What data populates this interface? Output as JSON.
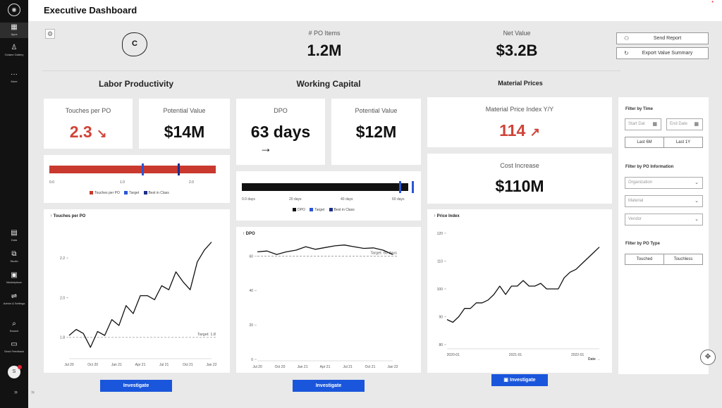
{
  "sidebar": {
    "items": [
      {
        "label": "Apps",
        "icon": "grid-icon"
      },
      {
        "label": "Octane Gallery",
        "icon": "gallery-icon"
      },
      {
        "label": "More",
        "icon": "more-icon"
      },
      {
        "label": "Data",
        "icon": "data-icon"
      },
      {
        "label": "Studio",
        "icon": "studio-icon"
      },
      {
        "label": "Marketplace",
        "icon": "marketplace-icon"
      },
      {
        "label": "Admin & Settings",
        "icon": "settings-icon"
      },
      {
        "label": "Search",
        "icon": "search-icon"
      },
      {
        "label": "Send Feedback",
        "icon": "feedback-icon"
      }
    ],
    "avatar_letter": "S"
  },
  "header": {
    "title": "Executive Dashboard"
  },
  "brand": {
    "logo_letter": "C"
  },
  "kpis": {
    "po_items_label": "# PO Items",
    "po_items_value": "1.2M",
    "net_value_label": "Net Value",
    "net_value_value": "$3.2B"
  },
  "actions": {
    "send_report": "Send Report",
    "export": "Export Value Summary"
  },
  "sections": {
    "labor": "Labor Productivity",
    "working": "Working Capital",
    "material": "Material Prices"
  },
  "labor": {
    "touches_label": "Touches per PO",
    "touches_value": "2.3",
    "touches_arrow": "↘",
    "potential_label": "Potential Value",
    "potential_value": "$14M",
    "bar_ticks": [
      "0.0",
      "1.0",
      "2.0"
    ],
    "bar_legend": [
      "Touches per PO",
      "Target",
      "Best in Class"
    ],
    "chart": {
      "title": "Touches per PO",
      "y_ticks": [
        "2.2",
        "2.0",
        "1.8"
      ],
      "x_ticks": [
        "Jul 20",
        "Oct 20",
        "Jan 21",
        "Apr 21",
        "Jul 21",
        "Oct 21",
        "Jan 22"
      ],
      "target_label": "Target: 1.8",
      "target": 1.8,
      "ylim": [
        1.7,
        2.36
      ],
      "values": [
        1.81,
        1.84,
        1.82,
        1.75,
        1.83,
        1.81,
        1.89,
        1.86,
        1.96,
        1.92,
        2.01,
        2.01,
        1.99,
        2.06,
        2.04,
        2.13,
        2.08,
        2.04,
        2.18,
        2.24,
        2.28
      ]
    }
  },
  "working": {
    "dpo_label": "DPO",
    "dpo_value": "63 days",
    "dpo_arrow": "→",
    "potential_label": "Potential Value",
    "potential_value": "$12M",
    "bar_ticks": [
      "0.0 days",
      "20 days",
      "40 days",
      "60 days"
    ],
    "bar_legend": [
      "DPO",
      "Target",
      "Best in Class"
    ],
    "chart": {
      "title": "DPO",
      "y_ticks": [
        "60",
        "40",
        "20",
        "0"
      ],
      "x_ticks": [
        "Jul 20",
        "Oct 20",
        "Jan 21",
        "Apr 21",
        "Jul 21",
        "Oct 21",
        "Jan 22"
      ],
      "target_label": "Target: 60 days",
      "target": 60,
      "ylim": [
        0,
        68
      ],
      "values": [
        62.5,
        63,
        61,
        62.5,
        63.5,
        65.5,
        64,
        65,
        66,
        66.5,
        65.5,
        64.5,
        64.8,
        63.5,
        61
      ]
    }
  },
  "material": {
    "index_label": "Material Price Index Y/Y",
    "index_value": "114",
    "index_arrow": "↗",
    "cost_label": "Cost Increase",
    "cost_value": "$110M",
    "chart": {
      "title": "Price Index",
      "y_ticks": [
        "120",
        "110",
        "100",
        "90",
        "80"
      ],
      "x_ticks": [
        "2020-01",
        "2021-01",
        "2022-01"
      ],
      "x_label": "Date →",
      "ylim": [
        79,
        121
      ],
      "values": [
        89,
        88,
        90,
        93,
        93,
        95,
        95,
        96,
        98,
        101,
        98,
        101,
        101,
        103,
        101,
        101,
        102,
        100,
        100,
        100,
        104,
        106,
        107,
        109,
        111,
        113,
        115
      ]
    }
  },
  "investigate_label": "Investigate",
  "filters": {
    "time_title": "Filter by Time",
    "start_date": "Start Dat",
    "end_date": "End Date",
    "last_6m": "Last 6M",
    "last_1y": "Last 1Y",
    "po_info_title": "Filter by PO Information",
    "organization": "Organization",
    "material": "Material",
    "vendor": "Vendor",
    "po_type_title": "Filter by PO Type",
    "touched": "Touched",
    "touchless": "Touchless"
  },
  "colors": {
    "accent": "#1a56db",
    "bad": "#d04338",
    "bar_red": "#c9392e",
    "target": "#2a56d6",
    "best": "#1c2f8a"
  }
}
